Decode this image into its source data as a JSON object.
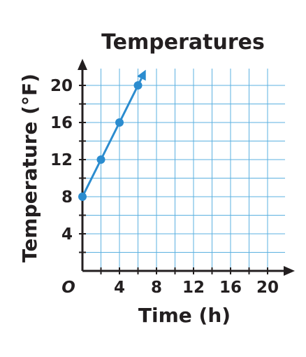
{
  "chart_data": {
    "type": "line",
    "title": "Temperatures",
    "xlabel": "Time (h)",
    "ylabel": "Temperature (°F)",
    "origin_label": "O",
    "xlim": [
      0,
      22
    ],
    "ylim": [
      0,
      22
    ],
    "grid": true,
    "grid_step": 2,
    "x_ticks": [
      4,
      8,
      12,
      16,
      20
    ],
    "y_ticks": [
      4,
      8,
      12,
      16,
      20
    ],
    "series": [
      {
        "x": [
          0,
          2,
          4,
          6
        ],
        "y": [
          8,
          12,
          16,
          20
        ],
        "arrow_end": true
      }
    ],
    "colors": {
      "line": "#2b8ccf",
      "grid": "#5bb0e0",
      "axis": "#231f20",
      "text": "#231f20"
    }
  }
}
